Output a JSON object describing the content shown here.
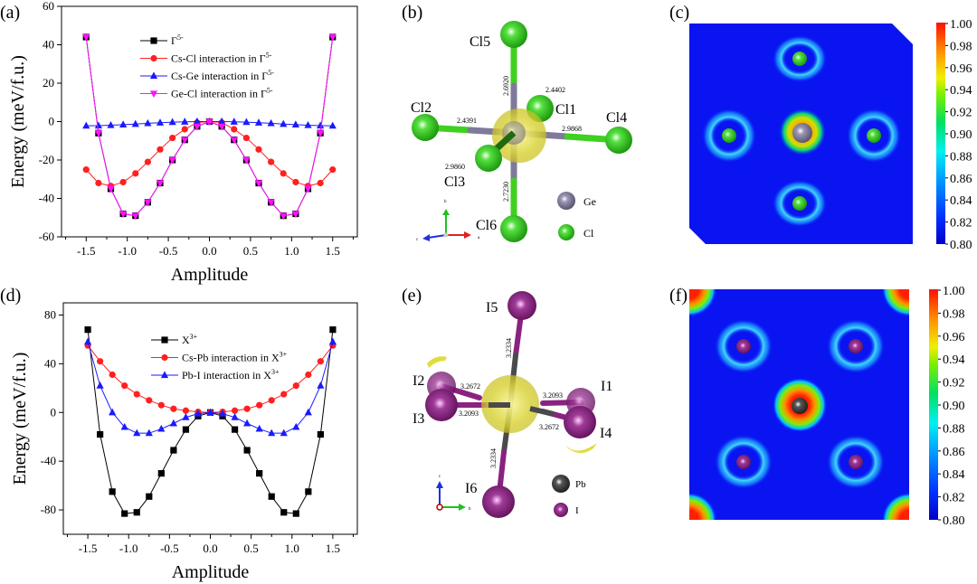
{
  "panel_labels": {
    "a": "(a)",
    "b": "(b)",
    "c": "(c)",
    "d": "(d)",
    "e": "(e)",
    "f": "(f)"
  },
  "chart_data": [
    {
      "type": "line",
      "panel": "a",
      "xlabel": "Amplitude",
      "ylabel": "Energy (meV/f.u.)",
      "xlim": [
        -1.8,
        1.8
      ],
      "ylim": [
        -60,
        60
      ],
      "xticks": [
        "-1.5",
        "-1.0",
        "-0.5",
        "0.0",
        "0.5",
        "1.0",
        "1.5"
      ],
      "yticks": [
        "-60",
        "-40",
        "-20",
        "0",
        "20",
        "40",
        "60"
      ],
      "legend_position": "top-center",
      "x": [
        -1.5,
        -1.35,
        -1.2,
        -1.05,
        -0.9,
        -0.75,
        -0.6,
        -0.45,
        -0.3,
        -0.15,
        0,
        0.15,
        0.3,
        0.45,
        0.6,
        0.75,
        0.9,
        1.05,
        1.2,
        1.35,
        1.5
      ],
      "series": [
        {
          "name": "Γ",
          "sup": "5-",
          "color": "#000000",
          "marker": "square",
          "values": [
            44,
            -6,
            -35,
            -48,
            -49,
            -42,
            -32,
            -20,
            -9.5,
            -2.5,
            0,
            -2.5,
            -9.5,
            -20,
            -32,
            -42,
            -49,
            -48,
            -35,
            -6,
            44
          ]
        },
        {
          "name": "Cs-Cl  interaction in Γ",
          "sup": "5-",
          "color": "#ff2020",
          "marker": "circle",
          "values": [
            -25,
            -32,
            -33.5,
            -31.5,
            -27,
            -21,
            -14.5,
            -8.5,
            -4,
            -0.5,
            0,
            -0.5,
            -4,
            -8.5,
            -14.5,
            -21,
            -27,
            -31.5,
            -33.5,
            -32,
            -25
          ]
        },
        {
          "name": "Cs-Ge interaction in Γ",
          "sup": "5-",
          "color": "#1a1aff",
          "marker": "triangle-up",
          "values": [
            -2.2,
            -2.1,
            -1.9,
            -1.6,
            -1.3,
            -0.9,
            -0.6,
            -0.3,
            -0.1,
            0,
            0,
            0,
            -0.1,
            -0.3,
            -0.6,
            -0.9,
            -1.3,
            -1.6,
            -1.9,
            -2.1,
            -2.2
          ]
        },
        {
          "name": "Ge-Cl  interaction in Γ",
          "sup": "5-",
          "color": "#ff10ff",
          "marker": "triangle-down",
          "values": [
            44,
            -6,
            -35,
            -48,
            -49,
            -42,
            -32,
            -20,
            -9.5,
            -2.5,
            0,
            -2.5,
            -9.5,
            -20,
            -32,
            -42,
            -49,
            -48,
            -35,
            -6,
            44
          ]
        }
      ]
    },
    {
      "type": "line",
      "panel": "d",
      "xlabel": "Amplitude",
      "ylabel": "Energy (meV/f.u.)",
      "xlim": [
        -1.8,
        1.8
      ],
      "ylim": [
        -100,
        90
      ],
      "xticks": [
        "-1.5",
        "-1.0",
        "-0.5",
        "0.0",
        "0.5",
        "1.0",
        "1.5"
      ],
      "yticks": [
        "-80",
        "-40",
        "0",
        "40",
        "80"
      ],
      "legend_position": "top-center",
      "x": [
        -1.5,
        -1.35,
        -1.2,
        -1.05,
        -0.9,
        -0.75,
        -0.6,
        -0.45,
        -0.3,
        -0.15,
        0,
        0.15,
        0.3,
        0.45,
        0.6,
        0.75,
        0.9,
        1.05,
        1.2,
        1.35,
        1.5
      ],
      "series": [
        {
          "name": "X",
          "sup": "3+",
          "color": "#000000",
          "marker": "square",
          "values": [
            68,
            -18,
            -65,
            -83,
            -82,
            -69,
            -50,
            -31,
            -14,
            -3,
            0,
            -3,
            -14,
            -31,
            -50,
            -69,
            -82,
            -83,
            -65,
            -18,
            68
          ]
        },
        {
          "name": "Cs-Pb interaction in X",
          "sup": "3+",
          "color": "#ff2020",
          "marker": "circle",
          "values": [
            55,
            42,
            31,
            22,
            15,
            10,
            6,
            3,
            1.5,
            0.5,
            0,
            0.5,
            1.5,
            3,
            6,
            10,
            15,
            22,
            31,
            42,
            55
          ]
        },
        {
          "name": "Pb-I    interaction in X",
          "sup": "3+",
          "color": "#1a1aff",
          "marker": "triangle-up",
          "values": [
            58,
            22,
            0,
            -12,
            -17,
            -17,
            -13.5,
            -9,
            -4,
            -1,
            0,
            -1,
            -4,
            -9,
            -13.5,
            -17,
            -17,
            -12,
            0,
            22,
            58
          ]
        }
      ]
    }
  ],
  "structure_b": {
    "atoms": {
      "cl5": "Cl5",
      "cl2": "Cl2",
      "cl1": "Cl1",
      "cl4": "Cl4",
      "cl3": "Cl3",
      "cl6": "Cl6"
    },
    "bonds": {
      "b5": "2.6920",
      "b1": "2.4402",
      "b2": "2.4391",
      "b4": "2.9868",
      "b3": "2.9860",
      "b6": "2.7230"
    },
    "legend": {
      "center": "Ge",
      "ligand": "Cl"
    },
    "axes": {
      "x": "a",
      "y": "b",
      "z": "c"
    },
    "colors": {
      "center": "#7f7a9a",
      "ligand": "#33cc1a",
      "isosurface": "#e0dc3a"
    }
  },
  "structure_e": {
    "atoms": {
      "i5": "I5",
      "i2": "I2",
      "i3": "I3",
      "i1": "I1",
      "i4": "I4",
      "i6": "I6"
    },
    "bonds": {
      "b5": "3.2334",
      "b2": "3.2672",
      "b3": "3.2093",
      "b1": "3.2093",
      "b4": "3.2672",
      "b6": "3.2334"
    },
    "legend": {
      "center": "Pb",
      "ligand": "I"
    },
    "axes": {
      "x": "b",
      "y": "c",
      "z": "a"
    },
    "colors": {
      "center": "#4a4a4a",
      "ligand": "#8a2280",
      "isosurface": "#e0dc3a"
    }
  },
  "colorbar_c": {
    "ticks": [
      "1.00",
      "0.98",
      "0.96",
      "0.94",
      "0.92",
      "0.90",
      "0.88",
      "0.86",
      "0.84",
      "0.82",
      "0.80"
    ],
    "range": [
      0.8,
      1.0
    ]
  },
  "colorbar_f": {
    "ticks": [
      "1.00",
      "0.98",
      "0.96",
      "0.94",
      "0.92",
      "0.90",
      "0.88",
      "0.86",
      "0.84",
      "0.82",
      "0.80"
    ],
    "range": [
      0.8,
      1.0
    ]
  }
}
